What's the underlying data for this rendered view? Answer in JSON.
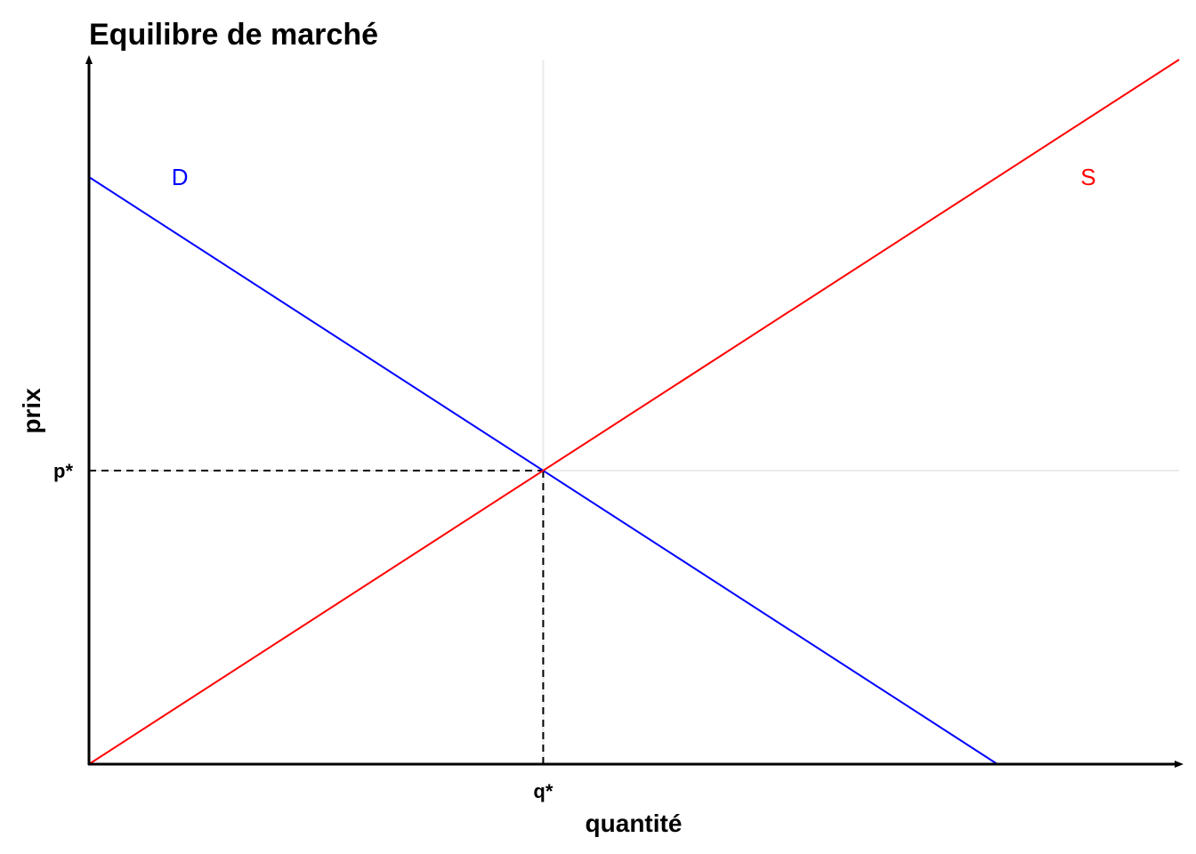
{
  "chart_data": {
    "type": "line",
    "title": "Equilibre de marché",
    "xlabel": "quantité",
    "ylabel": "prix",
    "xlim": [
      0,
      1.2
    ],
    "ylim": [
      0,
      1.2
    ],
    "grid": false,
    "series": [
      {
        "name": "D",
        "color": "#0000ff",
        "x": [
          0,
          1.0
        ],
        "y": [
          1.0,
          0
        ]
      },
      {
        "name": "S",
        "color": "#ff0000",
        "x": [
          0,
          1.2
        ],
        "y": [
          0,
          1.2
        ]
      }
    ],
    "equilibrium": {
      "x": 0.5,
      "y": 0.5,
      "x_label": "q*",
      "y_label": "p*"
    },
    "curve_labels": [
      {
        "text": "D",
        "x": 0.1,
        "y": 1.0,
        "color": "#0000ff"
      },
      {
        "text": "S",
        "x": 1.1,
        "y": 1.0,
        "color": "#ff0000"
      }
    ]
  }
}
